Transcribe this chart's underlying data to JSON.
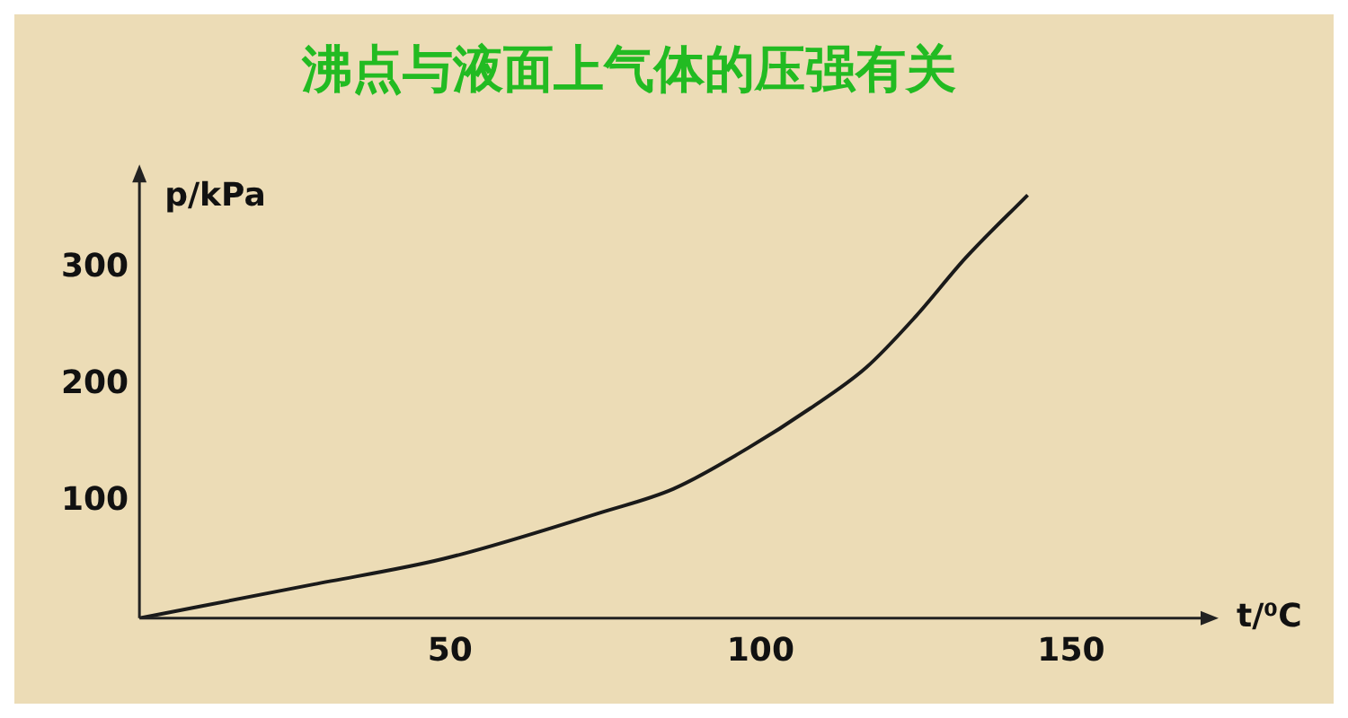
{
  "chart_data": {
    "type": "line",
    "title": "沸点与液面上气体的压强有关",
    "xlabel": "t/⁰C",
    "ylabel": "p/kPa",
    "x": [
      0,
      28,
      49,
      74.5,
      86,
      98,
      108,
      117,
      125,
      133,
      143
    ],
    "series": [
      {
        "color": "#1a1a1a",
        "values": [
          0,
          29,
          51,
          91,
          111,
          146,
          180,
          215,
          259,
          309,
          363
        ]
      }
    ],
    "xlim": [
      0,
      172
    ],
    "xticks": [
      50,
      100,
      150
    ],
    "ylim": [
      0,
      380
    ],
    "yticks": [
      100,
      200,
      300
    ],
    "grid": false,
    "legend": false,
    "marker": "none",
    "line_style": "solid"
  }
}
